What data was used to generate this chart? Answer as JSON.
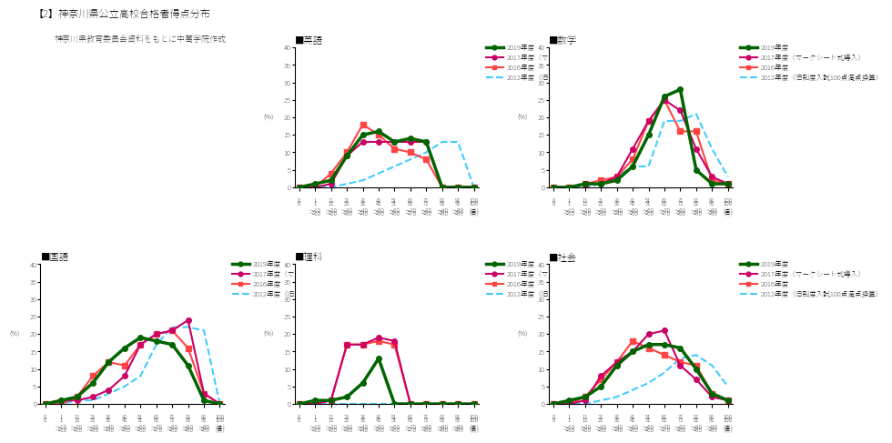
{
  "title": "【2】神奈川県公立高校合格者得点分布",
  "subtitle": "神奈川県教育委員会資料をもとに中萬学院作成",
  "x_labels": [
    "0",
    "1\n〜\n10",
    "11\n〜\n20",
    "21\n〜\n30",
    "31\n〜\n40",
    "41\n〜\n50",
    "51\n〜\n60",
    "61\n〜\n70",
    "71\n〜\n80",
    "81\n〜\n90",
    "91\n〜\n99",
    "100"
  ],
  "x_ticks_top": [
    "0",
    "1",
    "11",
    "21",
    "31",
    "41",
    "51",
    "61",
    "71",
    "81",
    "91",
    "100"
  ],
  "x_ticks_bottom": [
    "",
    "10",
    "20",
    "30",
    "40",
    "50",
    "60",
    "70",
    "80",
    "90",
    "99",
    "（点）"
  ],
  "subjects": [
    "英語",
    "数学",
    "国語",
    "理科",
    "社会"
  ],
  "legend_labels": [
    "2019年度",
    "2017年度（マークシート式導入）",
    "2016年度",
    "2012年度（旧制度入試100点満点換算）"
  ],
  "colors": [
    "#006400",
    "#cc0066",
    "#ff2020",
    "#00ccff"
  ],
  "line_styles": [
    "-",
    "-",
    "-",
    "--"
  ],
  "markers": [
    "o",
    "o",
    "s",
    ""
  ],
  "data": {
    "英語": {
      "2019": [
        0,
        1,
        2,
        9,
        15,
        16,
        13,
        14,
        13,
        0,
        0,
        0
      ],
      "2017": [
        0,
        0,
        1,
        9,
        13,
        13,
        13,
        13,
        13,
        0,
        0,
        0
      ],
      "2016": [
        0,
        0,
        4,
        10,
        18,
        15,
        11,
        10,
        8,
        0,
        0,
        0
      ],
      "2012": [
        0,
        0,
        0,
        1,
        2,
        4,
        6,
        8,
        10,
        13,
        13,
        0
      ]
    },
    "数学": {
      "2019": [
        0,
        0,
        1,
        1,
        2,
        6,
        15,
        26,
        28,
        5,
        1,
        1
      ],
      "2017": [
        0,
        0,
        1,
        1,
        3,
        11,
        19,
        25,
        22,
        11,
        3,
        1
      ],
      "2016": [
        0,
        0,
        1,
        2,
        3,
        8,
        19,
        25,
        16,
        16,
        2,
        1
      ],
      "2012": [
        0,
        0,
        0,
        1,
        3,
        6,
        6,
        19,
        19,
        21,
        11,
        3
      ]
    },
    "国語": {
      "2019": [
        0,
        1,
        2,
        6,
        12,
        16,
        19,
        18,
        17,
        11,
        1,
        0
      ],
      "2017": [
        0,
        1,
        1,
        2,
        4,
        8,
        17,
        20,
        21,
        24,
        3,
        0
      ],
      "2016": [
        0,
        0,
        2,
        8,
        12,
        11,
        17,
        20,
        21,
        16,
        3,
        0
      ],
      "2012": [
        0,
        0,
        1,
        1,
        3,
        5,
        8,
        17,
        22,
        22,
        21,
        0
      ]
    },
    "理科": {
      "2019": [
        0,
        1,
        1,
        2,
        6,
        13,
        0,
        0,
        0,
        0,
        0,
        0
      ],
      "2017": [
        0,
        0,
        1,
        17,
        17,
        19,
        18,
        0,
        0,
        0,
        0,
        0
      ],
      "2016": [
        0,
        0,
        1,
        17,
        17,
        18,
        17,
        0,
        0,
        0,
        0,
        0
      ],
      "2012": [
        0,
        0,
        0,
        0,
        0,
        0,
        0,
        0,
        0,
        0,
        0,
        0
      ]
    },
    "社会": {
      "2019": [
        0,
        1,
        2,
        5,
        11,
        15,
        17,
        17,
        16,
        10,
        3,
        1
      ],
      "2017": [
        0,
        0,
        1,
        8,
        12,
        15,
        20,
        21,
        11,
        7,
        2,
        1
      ],
      "2016": [
        0,
        0,
        2,
        7,
        12,
        18,
        16,
        14,
        12,
        11,
        3,
        1
      ],
      "2012": [
        0,
        0,
        0,
        1,
        2,
        4,
        6,
        9,
        13,
        14,
        11,
        5
      ]
    }
  }
}
